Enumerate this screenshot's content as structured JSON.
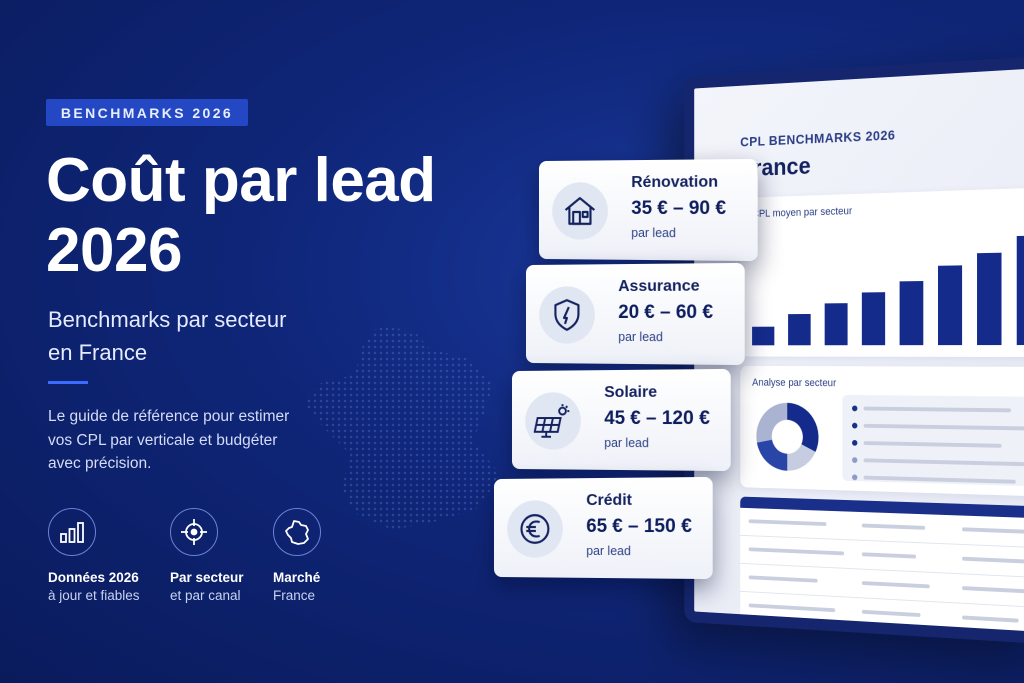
{
  "hero": {
    "badge": "BENCHMARKS 2026",
    "title_line1": "Coût par lead",
    "title_line2": "2026",
    "subtitle_line1": "Benchmarks par secteur",
    "subtitle_line2": "en France",
    "description_line1": "Le guide de référence pour estimer",
    "description_line2": "vos CPL par verticale et budgéter",
    "description_line3": "avec précision."
  },
  "features": [
    {
      "icon": "bar-chart-icon",
      "title": "Données 2026",
      "subtitle": "à jour et fiables"
    },
    {
      "icon": "target-icon",
      "title": "Par secteur",
      "subtitle": "et par canal"
    },
    {
      "icon": "france-map-icon",
      "title": "Marché",
      "subtitle": "France"
    }
  ],
  "sectors": [
    {
      "icon": "house-icon",
      "name": "Rénovation",
      "range": "35 € – 90 €",
      "unit": "par lead"
    },
    {
      "icon": "shield-icon",
      "name": "Assurance",
      "range": "20 € – 60 €",
      "unit": "par lead"
    },
    {
      "icon": "solar-panel-icon",
      "name": "Solaire",
      "range": "45 € – 120 €",
      "unit": "par lead"
    },
    {
      "icon": "euro-icon",
      "name": "Crédit",
      "range": "65 € – 150 €",
      "unit": "par lead"
    }
  ],
  "dashboard": {
    "kicker": "CPL BENCHMARKS 2026",
    "title": "France",
    "chart_label": "CPL moyen par secteur",
    "analysis_label": "Analyse par secteur",
    "bar_levels": [
      0.18,
      0.3,
      0.4,
      0.5,
      0.6,
      0.74,
      0.85,
      1.0
    ],
    "donut_shares": [
      0.32,
      0.18,
      0.22,
      0.28
    ]
  },
  "colors": {
    "background": "#0f2679",
    "accent": "#2448c4",
    "navy": "#13225f",
    "card": "#ffffff"
  }
}
